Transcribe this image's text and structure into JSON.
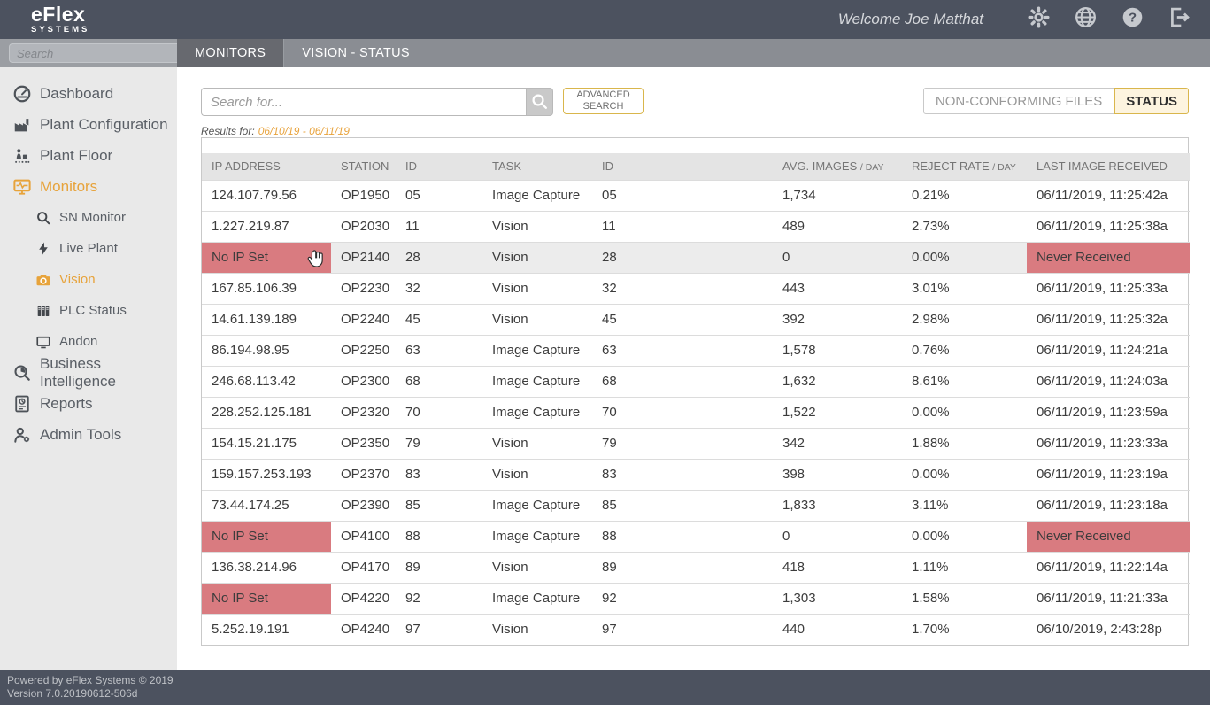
{
  "topbar": {
    "brand_line1": "eFlex",
    "brand_line2": "SYSTEMS",
    "welcome": "Welcome Joe Matthat",
    "icons": [
      "gear",
      "globe",
      "help",
      "logout"
    ]
  },
  "tabbar": {
    "tabs": [
      {
        "label": "MONITORS",
        "active": true
      },
      {
        "label": "VISION - STATUS",
        "active": false
      }
    ]
  },
  "sidebar": {
    "search_placeholder": "Search",
    "collapse_icon": "chevron-left",
    "items": [
      {
        "label": "Dashboard",
        "icon": "gauge",
        "sub": false,
        "active": false
      },
      {
        "label": "Plant Configuration",
        "icon": "factory",
        "sub": false,
        "active": false
      },
      {
        "label": "Plant Floor",
        "icon": "plant-floor",
        "sub": false,
        "active": false
      },
      {
        "label": "Monitors",
        "icon": "monitor-wave",
        "sub": false,
        "active": true
      },
      {
        "label": "SN Monitor",
        "icon": "magnifier",
        "sub": true,
        "active": false
      },
      {
        "label": "Live Plant",
        "icon": "lightning",
        "sub": true,
        "active": false
      },
      {
        "label": "Vision",
        "icon": "camera",
        "sub": true,
        "active": true
      },
      {
        "label": "PLC Status",
        "icon": "plc",
        "sub": true,
        "active": false
      },
      {
        "label": "Andon",
        "icon": "display",
        "sub": true,
        "active": false
      },
      {
        "label": "Business Intelligence",
        "icon": "bi",
        "sub": false,
        "active": false
      },
      {
        "label": "Reports",
        "icon": "report",
        "sub": false,
        "active": false
      },
      {
        "label": "Admin Tools",
        "icon": "admin",
        "sub": false,
        "active": false
      }
    ]
  },
  "content": {
    "search_placeholder": "Search for...",
    "advanced_search_line1": "ADVANCED",
    "advanced_search_line2": "SEARCH",
    "results_label": "Results for:",
    "results_range": "06/10/19 - 06/11/19",
    "toggle": {
      "left": "NON-CONFORMING FILES",
      "right": "STATUS",
      "selected": "STATUS"
    }
  },
  "table": {
    "columns": [
      "IP ADDRESS",
      "STATION",
      "ID",
      "TASK",
      "ID",
      "AVG. IMAGES / DAY",
      "REJECT RATE / DAY",
      "LAST IMAGE RECEIVED"
    ],
    "rows": [
      {
        "ip": "124.107.79.56",
        "ip_alert": false,
        "station": "OP1950",
        "station_id": "05",
        "task": "Image Capture",
        "task_id": "05",
        "avg_images": "1,734",
        "reject_rate": "0.21%",
        "last_image": "06/11/2019, 11:25:42a",
        "last_alert": false,
        "hovered": false
      },
      {
        "ip": "1.227.219.87",
        "ip_alert": false,
        "station": "OP2030",
        "station_id": "11",
        "task": "Vision",
        "task_id": "11",
        "avg_images": "489",
        "reject_rate": "2.73%",
        "last_image": "06/11/2019, 11:25:38a",
        "last_alert": false,
        "hovered": false
      },
      {
        "ip": "No IP Set",
        "ip_alert": true,
        "station": "OP2140",
        "station_id": "28",
        "task": "Vision",
        "task_id": "28",
        "avg_images": "0",
        "reject_rate": "0.00%",
        "last_image": "Never Received",
        "last_alert": true,
        "hovered": true
      },
      {
        "ip": "167.85.106.39",
        "ip_alert": false,
        "station": "OP2230",
        "station_id": "32",
        "task": "Vision",
        "task_id": "32",
        "avg_images": "443",
        "reject_rate": "3.01%",
        "last_image": "06/11/2019, 11:25:33a",
        "last_alert": false,
        "hovered": false
      },
      {
        "ip": "14.61.139.189",
        "ip_alert": false,
        "station": "OP2240",
        "station_id": "45",
        "task": "Vision",
        "task_id": "45",
        "avg_images": "392",
        "reject_rate": "2.98%",
        "last_image": "06/11/2019, 11:25:32a",
        "last_alert": false,
        "hovered": false
      },
      {
        "ip": "86.194.98.95",
        "ip_alert": false,
        "station": "OP2250",
        "station_id": "63",
        "task": "Image Capture",
        "task_id": "63",
        "avg_images": "1,578",
        "reject_rate": "0.76%",
        "last_image": "06/11/2019, 11:24:21a",
        "last_alert": false,
        "hovered": false
      },
      {
        "ip": "246.68.113.42",
        "ip_alert": false,
        "station": "OP2300",
        "station_id": "68",
        "task": "Image Capture",
        "task_id": "68",
        "avg_images": "1,632",
        "reject_rate": "8.61%",
        "last_image": "06/11/2019, 11:24:03a",
        "last_alert": false,
        "hovered": false
      },
      {
        "ip": "228.252.125.181",
        "ip_alert": false,
        "station": "OP2320",
        "station_id": "70",
        "task": "Image Capture",
        "task_id": "70",
        "avg_images": "1,522",
        "reject_rate": "0.00%",
        "last_image": "06/11/2019, 11:23:59a",
        "last_alert": false,
        "hovered": false
      },
      {
        "ip": "154.15.21.175",
        "ip_alert": false,
        "station": "OP2350",
        "station_id": "79",
        "task": "Vision",
        "task_id": "79",
        "avg_images": "342",
        "reject_rate": "1.88%",
        "last_image": "06/11/2019, 11:23:33a",
        "last_alert": false,
        "hovered": false
      },
      {
        "ip": "159.157.253.193",
        "ip_alert": false,
        "station": "OP2370",
        "station_id": "83",
        "task": "Vision",
        "task_id": "83",
        "avg_images": "398",
        "reject_rate": "0.00%",
        "last_image": "06/11/2019, 11:23:19a",
        "last_alert": false,
        "hovered": false
      },
      {
        "ip": "73.44.174.25",
        "ip_alert": false,
        "station": "OP2390",
        "station_id": "85",
        "task": "Image Capture",
        "task_id": "85",
        "avg_images": "1,833",
        "reject_rate": "3.11%",
        "last_image": "06/11/2019, 11:23:18a",
        "last_alert": false,
        "hovered": false
      },
      {
        "ip": "No IP Set",
        "ip_alert": true,
        "station": "OP4100",
        "station_id": "88",
        "task": "Image Capture",
        "task_id": "88",
        "avg_images": "0",
        "reject_rate": "0.00%",
        "last_image": "Never Received",
        "last_alert": true,
        "hovered": false
      },
      {
        "ip": "136.38.214.96",
        "ip_alert": false,
        "station": "OP4170",
        "station_id": "89",
        "task": "Vision",
        "task_id": "89",
        "avg_images": "418",
        "reject_rate": "1.11%",
        "last_image": "06/11/2019, 11:22:14a",
        "last_alert": false,
        "hovered": false
      },
      {
        "ip": "No IP Set",
        "ip_alert": true,
        "station": "OP4220",
        "station_id": "92",
        "task": "Image Capture",
        "task_id": "92",
        "avg_images": "1,303",
        "reject_rate": "1.58%",
        "last_image": "06/11/2019, 11:21:33a",
        "last_alert": false,
        "hovered": false
      },
      {
        "ip": "5.252.19.191",
        "ip_alert": false,
        "station": "OP4240",
        "station_id": "97",
        "task": "Vision",
        "task_id": "97",
        "avg_images": "440",
        "reject_rate": "1.70%",
        "last_image": "06/10/2019, 2:43:28p",
        "last_alert": false,
        "hovered": false
      }
    ]
  },
  "footer": {
    "line1": "Powered by eFlex Systems © 2019",
    "line2": "Version 7.0.20190612-506d"
  },
  "colors": {
    "topbar_bg": "#4c525f",
    "accent_orange": "#e7a33b",
    "alert_red": "#d97b80",
    "gold_border": "#d9b64c",
    "tabbar_bg": "#8a8d93",
    "sidebar_bg": "#e9e9e9"
  }
}
